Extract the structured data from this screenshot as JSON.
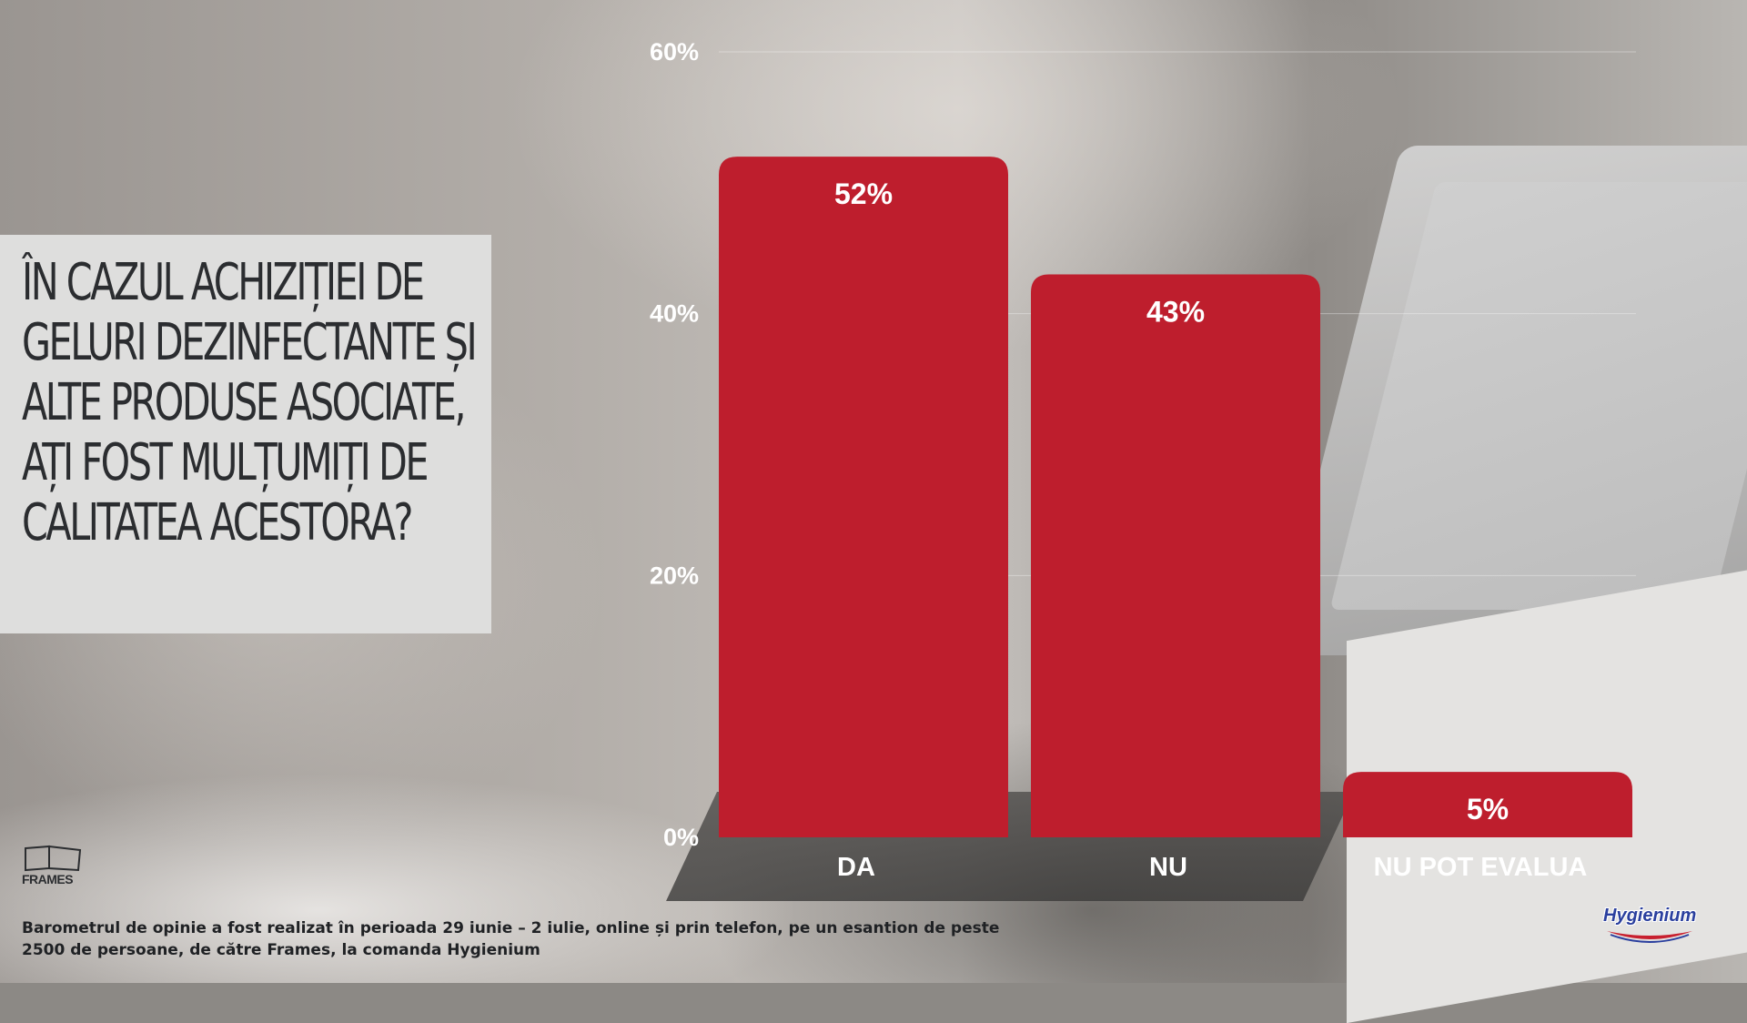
{
  "question": "În cazul achiziției de geluri dezinfectante și alte produse asociate, ați fost mulțumiți de calitatea acestora?",
  "chart_data": {
    "type": "bar",
    "categories": [
      "DA",
      "NU",
      "NU POT EVALUA"
    ],
    "values": [
      52,
      43,
      5
    ],
    "value_labels": [
      "52%",
      "43%",
      "5%"
    ],
    "ylim": [
      0,
      60
    ],
    "yticks": [
      "0%",
      "20%",
      "40%",
      "60%"
    ],
    "ytick_values": [
      0,
      20,
      40,
      60
    ],
    "bar_color": "#be1e2d",
    "grid": true
  },
  "footer": {
    "note": "Barometrul de opinie a fost realizat în perioada 29 iunie – 2 iulie, online și prin telefon, pe un esantion de peste 2500 de persoane, de către Frames, la comanda Hygienium",
    "frames_logo": "FRAMES",
    "hygienium_logo": "Hygienium"
  }
}
